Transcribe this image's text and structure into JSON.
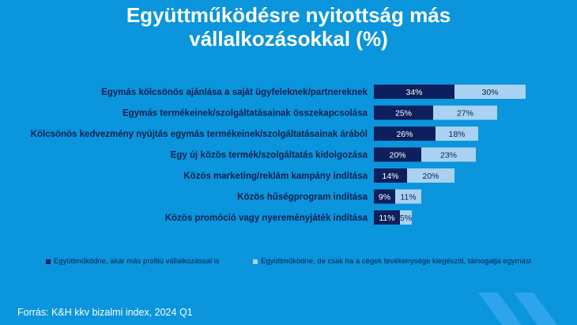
{
  "title_line1": "Együttműködésre nyitottság más",
  "title_line2": "vállalkozásokkal (%)",
  "chart_data": {
    "type": "bar",
    "orientation": "horizontal",
    "stacked": true,
    "categories": [
      "Egymás kölcsönös ajánlása a saját ügyfeleknek/partnereknek",
      "Egymás termékeinek/szolgáltatásainak összekapcsolása",
      "Kölcsönös kedvezmény nyújtás egymás termékeinek/szolgáltatásainak árából",
      "Egy új közös termék/szolgáltatás kidolgozása",
      "Közös marketing/reklám kampány indítása",
      "Közös hűségprogram indítása",
      "Közös promóció vagy nyereményjáték indítása"
    ],
    "series": [
      {
        "name": "Együttműködne, akár más profilú vállalkozással is",
        "color": "#0d1f5c",
        "label_color": "#ffffff",
        "values": [
          34,
          25,
          26,
          20,
          14,
          9,
          11
        ],
        "labels": [
          "34%",
          "25%",
          "26%",
          "20%",
          "14%",
          "9%",
          "11%"
        ]
      },
      {
        "name": "Együttműködne, de csak ha a cégek tevékenysége kiegészíti, támogatja egymást",
        "color": "#a9d2f2",
        "label_color": "#0d1f4f",
        "values": [
          30,
          27,
          18,
          23,
          20,
          11,
          5
        ],
        "labels": [
          "30%",
          "27%",
          "18%",
          "23%",
          "20%",
          "11%",
          "5%"
        ]
      }
    ],
    "legend_position": "bottom",
    "grid": false
  },
  "source": "Forrás: K&H kkv bizalmi index, 2024 Q1"
}
